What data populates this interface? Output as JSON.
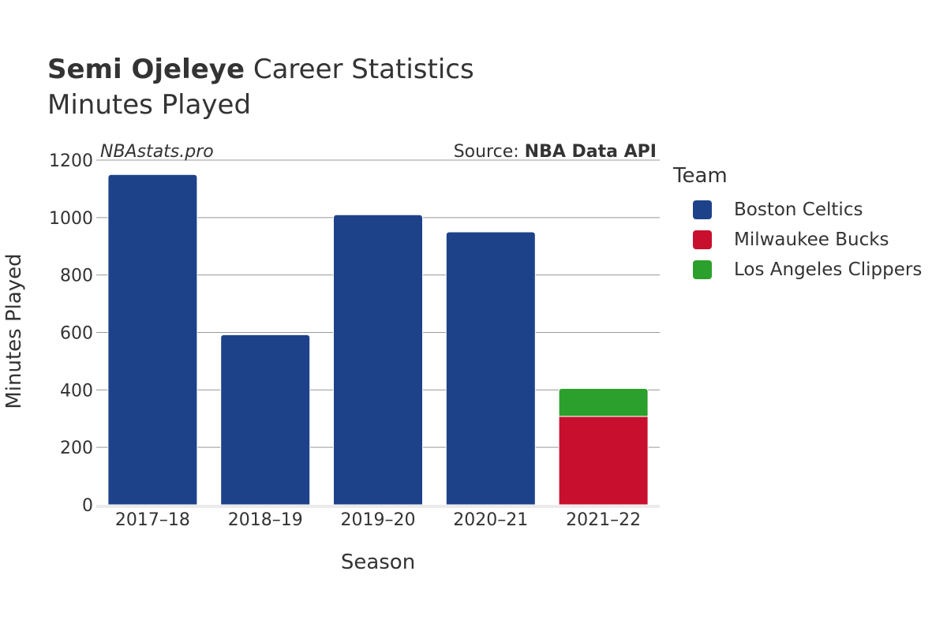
{
  "header": {
    "title_bold": "Semi Ojeleye",
    "title_rest": "Career Statistics",
    "subtitle": "Minutes Played"
  },
  "watermark": "NBAstats.pro",
  "source": {
    "prefix": "Source: ",
    "name": "NBA Data API"
  },
  "legend": {
    "title": "Team",
    "items": [
      {
        "label": "Boston Celtics",
        "color": "#1d428a"
      },
      {
        "label": "Milwaukee Bucks",
        "color": "#c8102e"
      },
      {
        "label": "Los Angeles Clippers",
        "color": "#2ca02c"
      }
    ]
  },
  "chart_data": {
    "type": "bar",
    "stacked": true,
    "categories": [
      "2017–18",
      "2018–19",
      "2019–20",
      "2020–21",
      "2021–22"
    ],
    "series": [
      {
        "name": "Boston Celtics",
        "color": "#1d428a",
        "values": [
          1150,
          592,
          1010,
          950,
          0
        ]
      },
      {
        "name": "Milwaukee Bucks",
        "color": "#c8102e",
        "values": [
          0,
          0,
          0,
          0,
          308
        ]
      },
      {
        "name": "Los Angeles Clippers",
        "color": "#2ca02c",
        "values": [
          0,
          0,
          0,
          0,
          97
        ]
      }
    ],
    "xlabel": "Season",
    "ylabel": "Minutes Played",
    "ylim": [
      0,
      1200
    ],
    "yticks": [
      0,
      200,
      400,
      600,
      800,
      1000,
      1200
    ],
    "grid": true,
    "legend_position": "right"
  }
}
